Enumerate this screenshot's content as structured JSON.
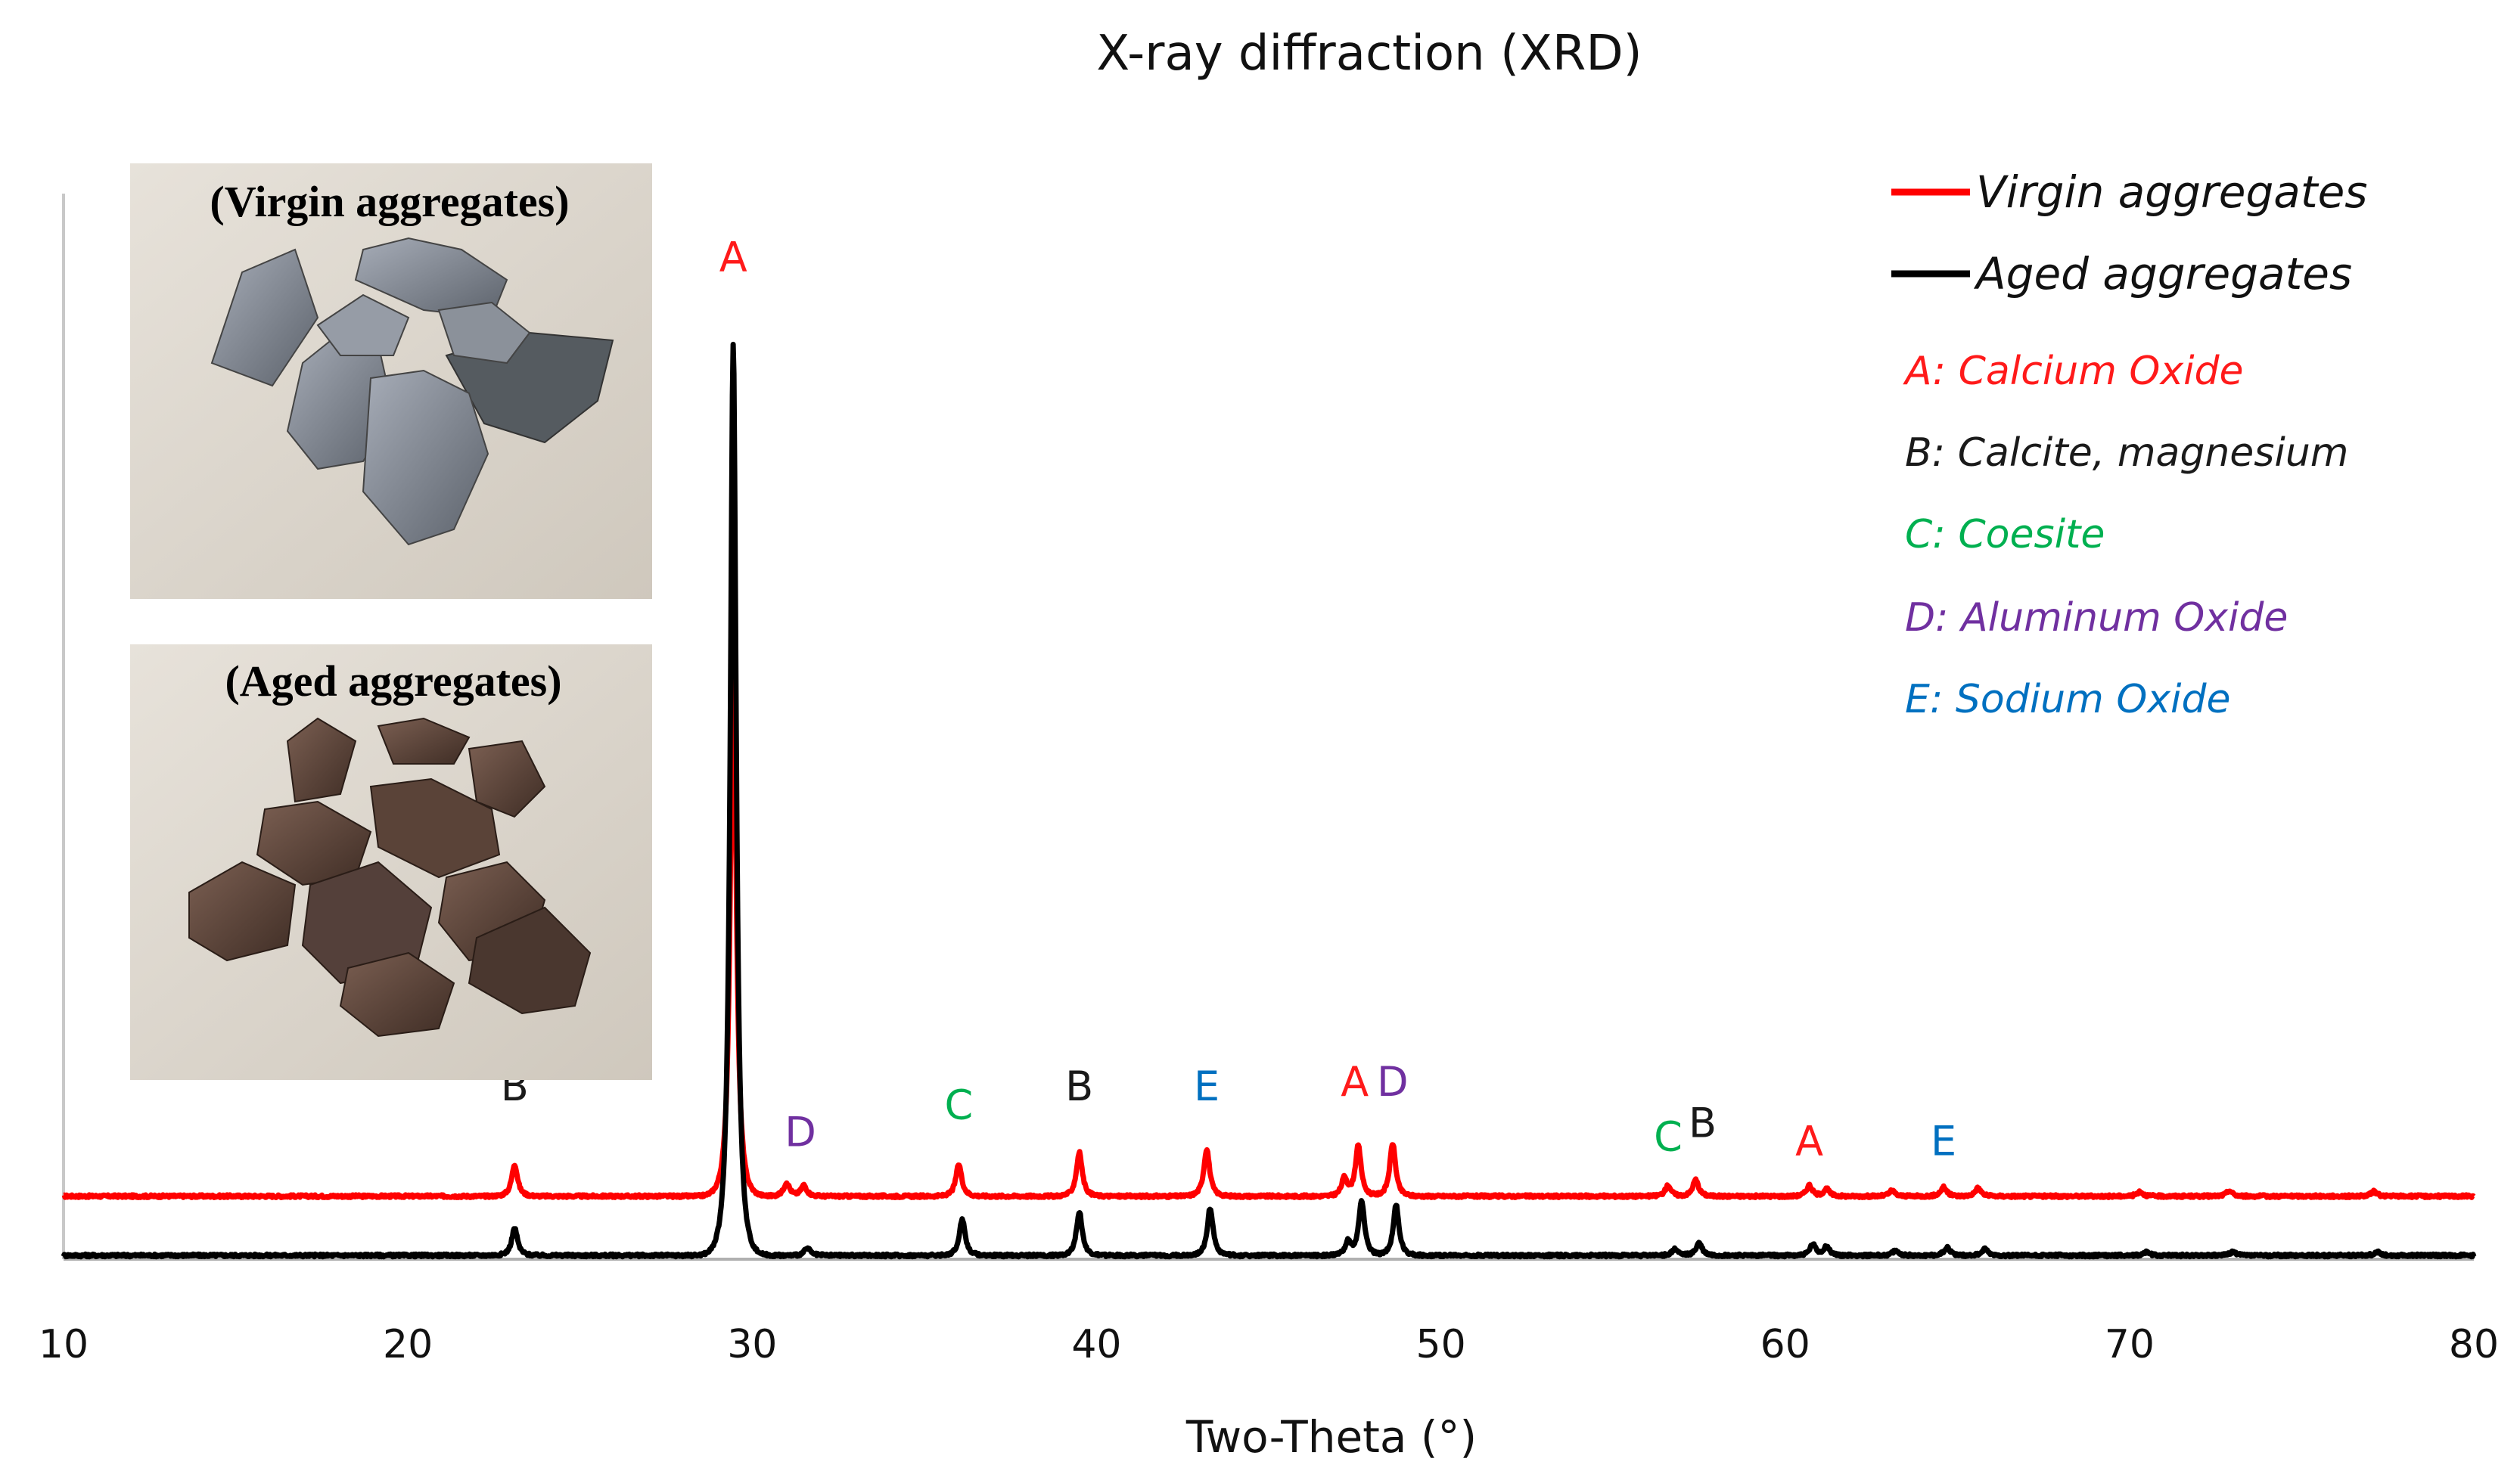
{
  "chart_data": {
    "type": "line",
    "title": "X-ray diffraction (XRD)",
    "xlabel": "Two-Theta (°)",
    "ylabel": "",
    "xlim": [
      10,
      80
    ],
    "xticks": [
      10,
      20,
      30,
      40,
      50,
      60,
      70,
      80
    ],
    "series": [
      {
        "name": "Virgin aggregates",
        "color": "#ff0000",
        "baseline": 0.065,
        "peaks": [
          {
            "x": 23.1,
            "h": 0.035
          },
          {
            "x": 29.45,
            "h": 0.6
          },
          {
            "x": 31.0,
            "h": 0.015
          },
          {
            "x": 31.5,
            "h": 0.012
          },
          {
            "x": 36.0,
            "h": 0.035
          },
          {
            "x": 39.5,
            "h": 0.048
          },
          {
            "x": 43.2,
            "h": 0.052
          },
          {
            "x": 47.2,
            "h": 0.02
          },
          {
            "x": 47.6,
            "h": 0.055
          },
          {
            "x": 48.6,
            "h": 0.058
          },
          {
            "x": 56.6,
            "h": 0.012
          },
          {
            "x": 57.4,
            "h": 0.018
          },
          {
            "x": 60.7,
            "h": 0.012
          },
          {
            "x": 61.2,
            "h": 0.008
          },
          {
            "x": 63.1,
            "h": 0.006
          },
          {
            "x": 64.6,
            "h": 0.01
          },
          {
            "x": 65.6,
            "h": 0.009
          },
          {
            "x": 70.3,
            "h": 0.005
          },
          {
            "x": 72.9,
            "h": 0.006
          },
          {
            "x": 77.1,
            "h": 0.005
          }
        ]
      },
      {
        "name": "Aged aggregates",
        "color": "#000000",
        "baseline": 0.0,
        "peaks": [
          {
            "x": 23.1,
            "h": 0.03
          },
          {
            "x": 29.45,
            "h": 1.0
          },
          {
            "x": 31.6,
            "h": 0.008
          },
          {
            "x": 36.1,
            "h": 0.04
          },
          {
            "x": 39.5,
            "h": 0.048
          },
          {
            "x": 43.3,
            "h": 0.052
          },
          {
            "x": 47.3,
            "h": 0.015
          },
          {
            "x": 47.7,
            "h": 0.06
          },
          {
            "x": 48.7,
            "h": 0.055
          },
          {
            "x": 56.8,
            "h": 0.007
          },
          {
            "x": 57.5,
            "h": 0.014
          },
          {
            "x": 60.8,
            "h": 0.012
          },
          {
            "x": 61.2,
            "h": 0.01
          },
          {
            "x": 63.2,
            "h": 0.005
          },
          {
            "x": 64.7,
            "h": 0.009
          },
          {
            "x": 65.8,
            "h": 0.007
          },
          {
            "x": 70.5,
            "h": 0.004
          },
          {
            "x": 73.0,
            "h": 0.004
          },
          {
            "x": 77.2,
            "h": 0.004
          }
        ]
      }
    ],
    "peak_labels": [
      {
        "text": "B",
        "x": 23.1,
        "phase": "B",
        "y": 0.17
      },
      {
        "text": "A",
        "x": 29.45,
        "phase": "A",
        "y": 1.08
      },
      {
        "text": "D",
        "x": 31.4,
        "phase": "D",
        "y": 0.12
      },
      {
        "text": "C",
        "x": 36.0,
        "phase": "C",
        "y": 0.15
      },
      {
        "text": "B",
        "x": 39.5,
        "phase": "B",
        "y": 0.17
      },
      {
        "text": "E",
        "x": 43.2,
        "phase": "E",
        "y": 0.17
      },
      {
        "text": "A",
        "x": 47.5,
        "phase": "A",
        "y": 0.175
      },
      {
        "text": "D",
        "x": 48.6,
        "phase": "D",
        "y": 0.175
      },
      {
        "text": "C",
        "x": 56.6,
        "phase": "C",
        "y": 0.115
      },
      {
        "text": "B",
        "x": 57.6,
        "phase": "B",
        "y": 0.13
      },
      {
        "text": "A",
        "x": 60.7,
        "phase": "A",
        "y": 0.11
      },
      {
        "text": "E",
        "x": 64.6,
        "phase": "E",
        "y": 0.11
      }
    ],
    "phases": [
      {
        "key": "A",
        "label": "A: Calcium Oxide",
        "color": "#ff1a1a"
      },
      {
        "key": "B",
        "label": "B: Calcite, magnesium",
        "color": "#1a1a1a"
      },
      {
        "key": "C",
        "label": "C: Coesite",
        "color": "#00b050"
      },
      {
        "key": "D",
        "label": "D: Aluminum Oxide",
        "color": "#7030a0"
      },
      {
        "key": "E",
        "label": "E: Sodium Oxide",
        "color": "#0070c0"
      }
    ],
    "legend": [
      "Virgin aggregates",
      "Aged aggregates"
    ],
    "legend_position": "top-right",
    "grid": false
  },
  "insets": [
    {
      "caption": "(Virgin aggregates)",
      "tone": "gray"
    },
    {
      "caption": "(Aged aggregates)",
      "tone": "brown"
    }
  ]
}
